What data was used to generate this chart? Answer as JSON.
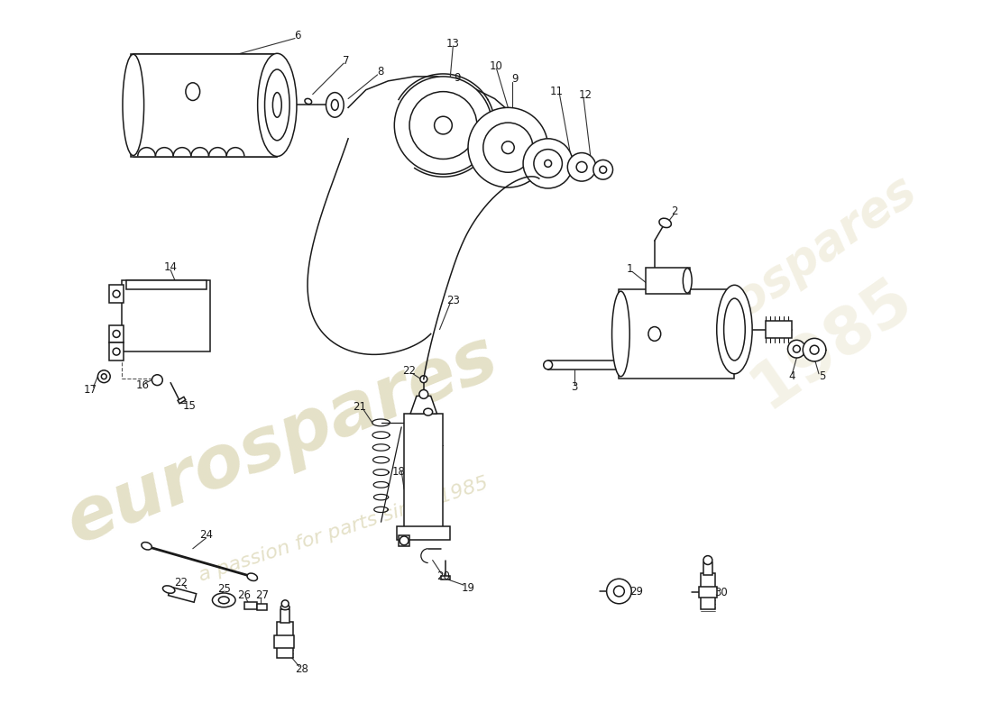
{
  "bg_color": "#ffffff",
  "line_color": "#1a1a1a",
  "lw": 1.1,
  "wm1_text": "eurospares",
  "wm2_text": "a passion for parts since 1985",
  "wm_color": "#cfc89a",
  "wm_alpha": 0.55
}
